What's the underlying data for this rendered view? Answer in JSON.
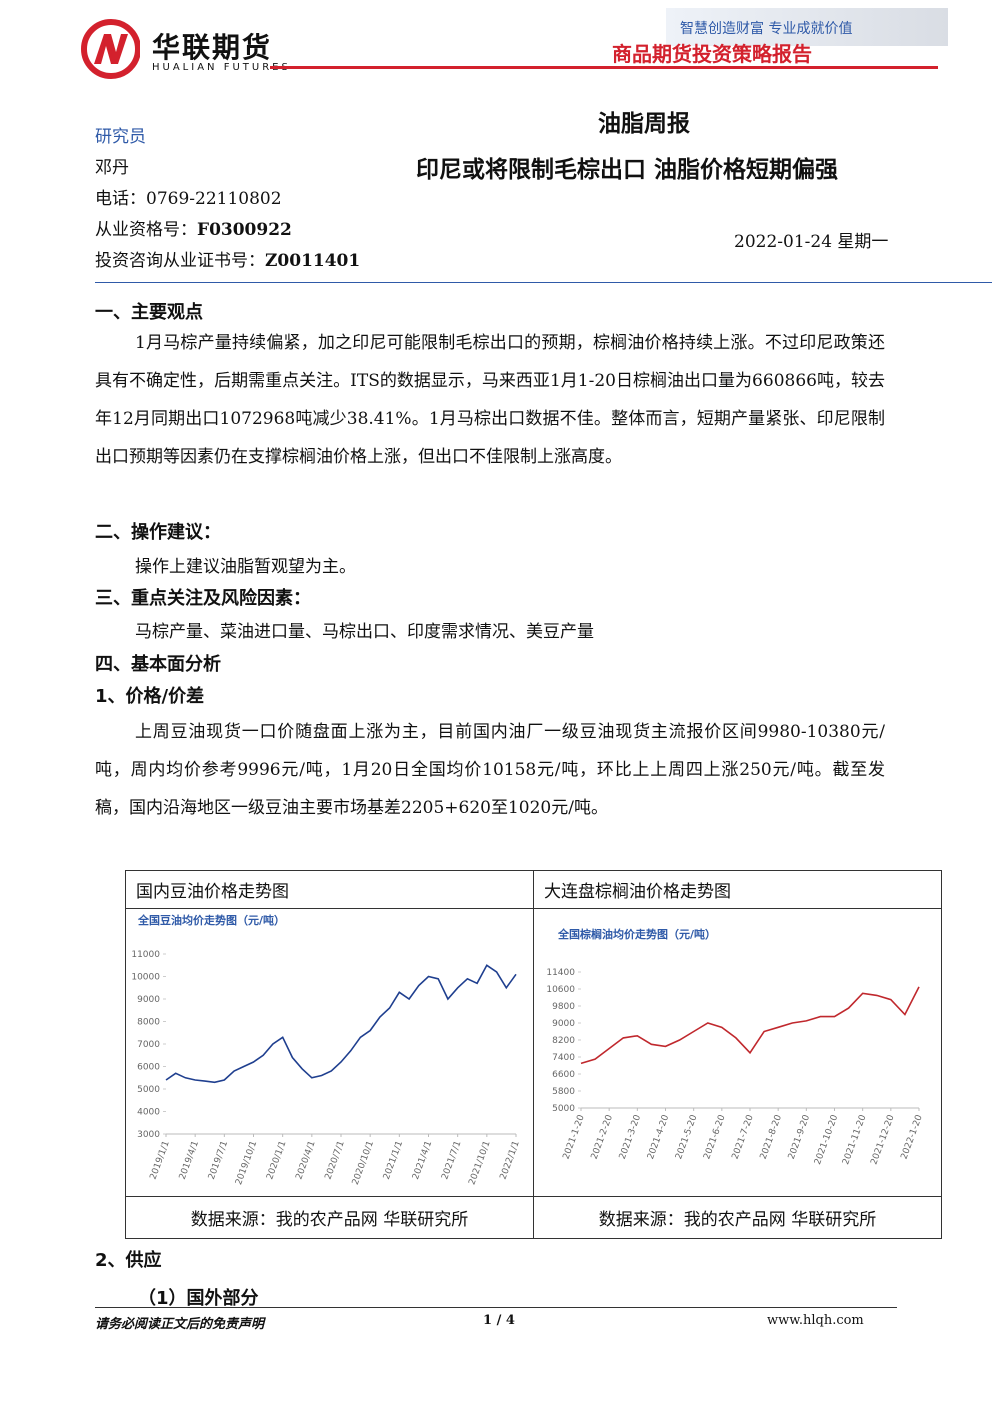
{
  "header": {
    "logo_cn": "华联期货",
    "logo_en": "HUALIAN FUTURES",
    "slogan": "智慧创造财富  专业成就价值",
    "report_type": "商品期货投资策略报告"
  },
  "researcher": {
    "label": "研究员",
    "name": "邓丹",
    "phone_label": "电话：",
    "phone": "0769-22110802",
    "qualification_label": "从业资格号：",
    "qualification": "F0300922",
    "certificate_label": "投资咨询从业证书号：",
    "certificate": "Z0011401"
  },
  "report": {
    "category": "油脂周报",
    "title": "印尼或将限制毛棕出口 油脂价格短期偏强",
    "date": "2022-01-24 星期一"
  },
  "body": {
    "s1_heading": "一、主要观点",
    "s1_text": "1月马棕产量持续偏紧，加之印尼可能限制毛棕出口的预期，棕榈油价格持续上涨。不过印尼政策还具有不确定性，后期需重点关注。ITS的数据显示，马来西亚1月1-20日棕榈油出口量为660866吨，较去年12月同期出口1072968吨减少38.41%。1月马棕出口数据不佳。整体而言，短期产量紧张、印尼限制出口预期等因素仍在支撑棕榈油价格上涨，但出口不佳限制上涨高度。",
    "s2_heading": "二、操作建议：",
    "s2_text": "操作上建议油脂暂观望为主。",
    "s3_heading": "三、重点关注及风险因素：",
    "s3_text": "马棕产量、菜油进口量、马棕出口、印度需求情况、美豆产量",
    "s4_heading": "四、基本面分析",
    "s4_1_heading": "1、价格/价差",
    "s4_1_text": "上周豆油现货一口价随盘面上涨为主，目前国内油厂一级豆油现货主流报价区间9980-10380元/吨，周内均价参考9996元/吨，1月20日全国均价10158元/吨，环比上上周四上涨250元/吨。截至发稿，国内沿海地区一级豆油主要市场基差2205+620至1020元/吨。",
    "s4_2_heading": "2、供应",
    "s4_2_1_heading": "（1）国外部分"
  },
  "figure_table": {
    "left_title": "国内豆油价格走势图",
    "right_title": "大连盘棕榈油价格走势图",
    "left_source": "数据来源：我的农产品网  华联研究所",
    "right_source": "数据来源：我的农产品网  华联研究所"
  },
  "charts": [
    {
      "type": "line",
      "title": "全国豆油均价走势图（元/吨）",
      "color": "#1f3f8f",
      "categories": [
        "2019/1/1",
        null,
        null,
        "2019/4/1",
        null,
        null,
        "2019/7/1",
        null,
        null,
        "2019/10/1",
        null,
        null,
        "2020/1/1",
        null,
        null,
        "2020/4/1",
        null,
        null,
        "2020/7/1",
        null,
        null,
        "2020/10/1",
        null,
        null,
        "2021/1/1",
        null,
        null,
        "2021/4/1",
        null,
        null,
        "2021/7/1",
        null,
        null,
        "2021/10/1",
        null,
        null,
        "2022/1/1"
      ],
      "values": [
        5400,
        5700,
        5500,
        5400,
        5350,
        5300,
        5400,
        5800,
        6000,
        6200,
        6500,
        7000,
        7300,
        6400,
        5900,
        5500,
        5600,
        5800,
        6200,
        6700,
        7300,
        7600,
        8200,
        8600,
        9300,
        9000,
        9600,
        10000,
        9900,
        9000,
        9500,
        9900,
        9700,
        10500,
        10200,
        9500,
        10100
      ],
      "ylim": [
        3000,
        11000
      ],
      "yticks": [
        3000,
        4000,
        5000,
        6000,
        7000,
        8000,
        9000,
        10000,
        11000
      ]
    },
    {
      "type": "line",
      "title": "全国棕榈油均价走势图（元/吨）",
      "color": "#c0282d",
      "categories": [
        "2021-1-20",
        null,
        "2021-2-20",
        null,
        "2021-3-20",
        null,
        "2021-4-20",
        null,
        "2021-5-20",
        null,
        "2021-6-20",
        null,
        "2021-7-20",
        null,
        "2021-8-20",
        null,
        "2021-9-20",
        null,
        "2021-10-20",
        null,
        "2021-11-20",
        null,
        "2021-12-20",
        null,
        "2022-1-20"
      ],
      "values": [
        7100,
        7300,
        7800,
        8300,
        8400,
        8000,
        7900,
        8200,
        8600,
        9000,
        8800,
        8300,
        7600,
        8600,
        8800,
        9000,
        9100,
        9300,
        9300,
        9700,
        10400,
        10300,
        10100,
        9400,
        10700
      ],
      "ylim": [
        5000,
        11400
      ],
      "yticks": [
        5000,
        5800,
        6600,
        7400,
        8200,
        9000,
        9800,
        10600,
        11400
      ]
    }
  ],
  "footer": {
    "disclaimer": "请务必阅读正文后的免责声明",
    "page": "1 / 4",
    "website": "www.hlqh.com"
  }
}
